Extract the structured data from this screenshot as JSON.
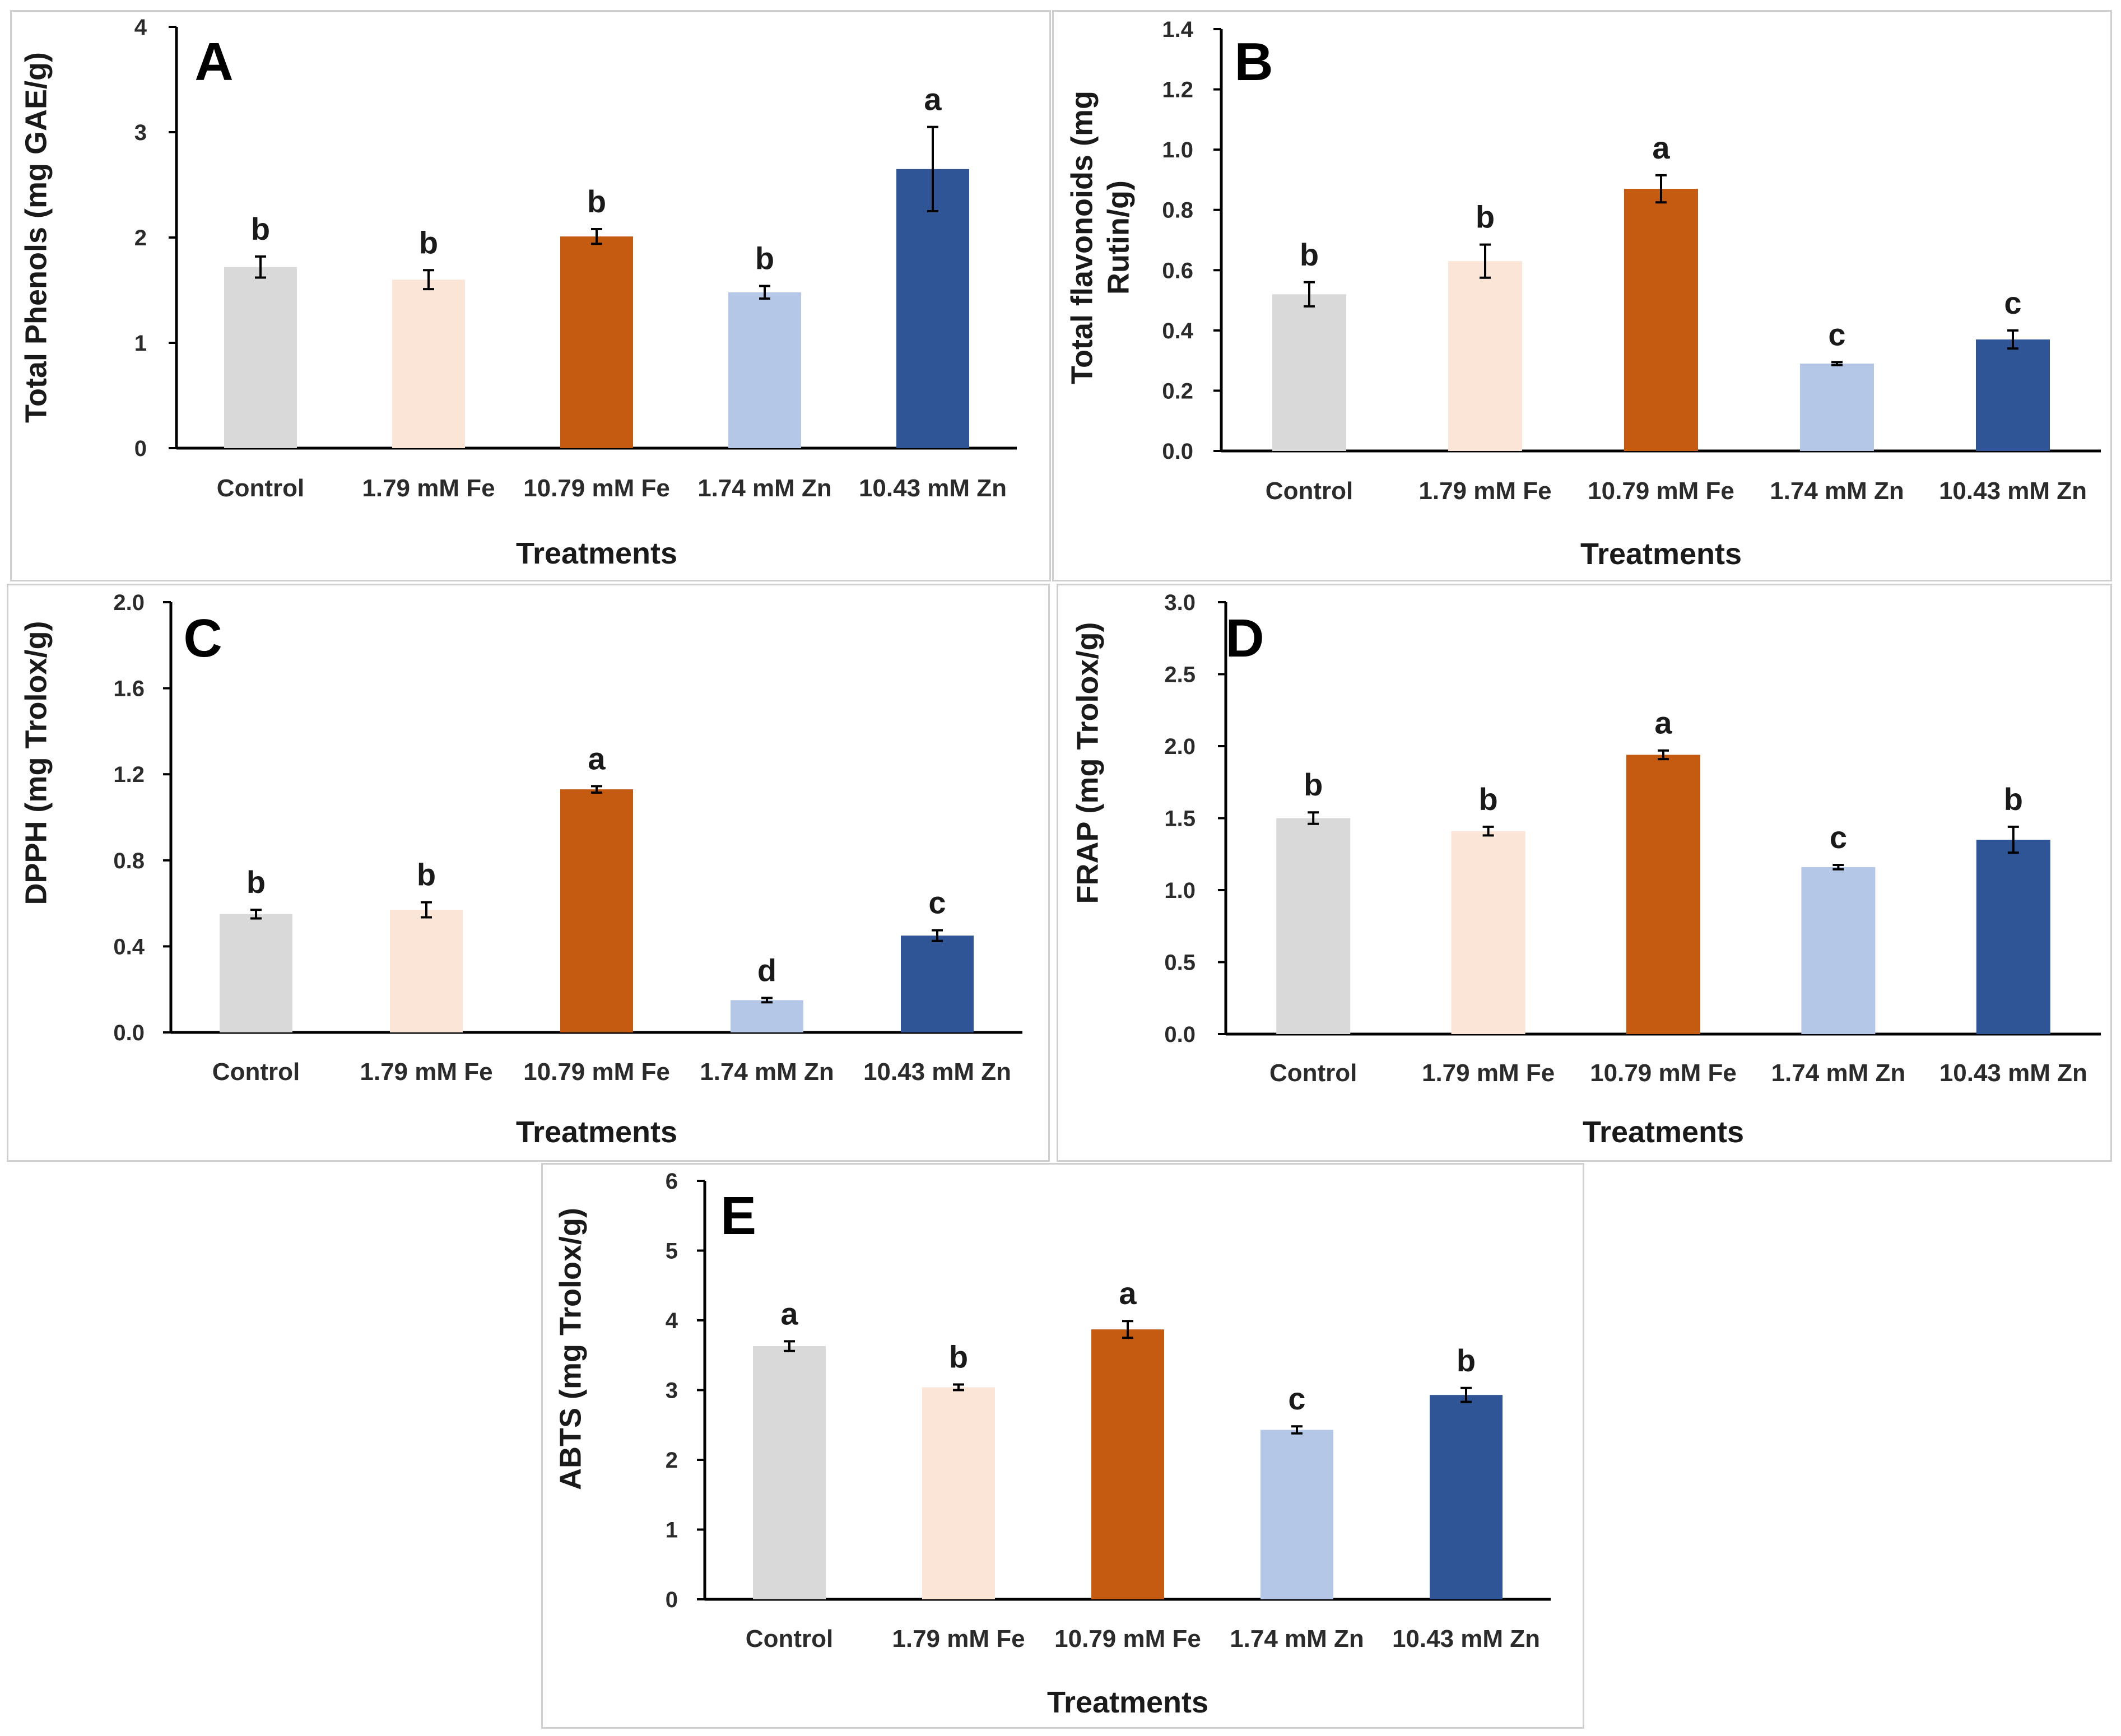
{
  "colors": {
    "Control": "#d9d9d9",
    "1.79 mM Fe": "#fbe5d6",
    "10.79 mM Fe": "#c55a11",
    "1.74 mM Zn": "#b4c7e7",
    "10.43 mM Zn": "#2f5597"
  },
  "chart_data": [
    {
      "type": "bar",
      "panel": "A",
      "categories": [
        "Control",
        "1.79 mM Fe",
        "10.79 mM Fe",
        "1.74 mM Zn",
        "10.43 mM Zn"
      ],
      "values": [
        1.72,
        1.6,
        2.01,
        1.48,
        2.65
      ],
      "errors": [
        0.1,
        0.09,
        0.07,
        0.06,
        0.4
      ],
      "significance": [
        "b",
        "b",
        "b",
        "b",
        "a"
      ],
      "ylabel": "Total Phenols (mg GAE/g)",
      "xlabel": "Treatments",
      "ylim": [
        0,
        4
      ],
      "yticks": [
        "0",
        "1",
        "2",
        "3",
        "4"
      ]
    },
    {
      "type": "bar",
      "panel": "B",
      "categories": [
        "Control",
        "1.79 mM Fe",
        "10.79 mM Fe",
        "1.74 mM Zn",
        "10.43 mM Zn"
      ],
      "values": [
        0.52,
        0.63,
        0.87,
        0.29,
        0.37
      ],
      "errors": [
        0.04,
        0.055,
        0.045,
        0.005,
        0.03
      ],
      "significance": [
        "b",
        "b",
        "a",
        "c",
        "c"
      ],
      "ylabel": [
        "Total flavonoids (mg",
        "Rutin/g)"
      ],
      "xlabel": "Treatments",
      "ylim": [
        0,
        1.4
      ],
      "yticks": [
        "0.0",
        "0.2",
        "0.4",
        "0.6",
        "0.8",
        "1.0",
        "1.2",
        "1.4"
      ]
    },
    {
      "type": "bar",
      "panel": "C",
      "categories": [
        "Control",
        "1.79 mM Fe",
        "10.79 mM Fe",
        "1.74 mM Zn",
        "10.43 mM Zn"
      ],
      "values": [
        0.55,
        0.57,
        1.13,
        0.15,
        0.45
      ],
      "errors": [
        0.02,
        0.035,
        0.015,
        0.01,
        0.025
      ],
      "significance": [
        "b",
        "b",
        "a",
        "d",
        "c"
      ],
      "ylabel": "DPPH (mg Trolox/g)",
      "xlabel": "Treatments",
      "ylim": [
        0,
        2.0
      ],
      "yticks": [
        "0.0",
        "0.4",
        "0.8",
        "1.2",
        "1.6",
        "2.0"
      ]
    },
    {
      "type": "bar",
      "panel": "D",
      "categories": [
        "Control",
        "1.79 mM Fe",
        "10.79 mM Fe",
        "1.74 mM Zn",
        "10.43 mM Zn"
      ],
      "values": [
        1.5,
        1.41,
        1.94,
        1.16,
        1.35
      ],
      "errors": [
        0.04,
        0.03,
        0.03,
        0.015,
        0.09
      ],
      "significance": [
        "b",
        "b",
        "a",
        "c",
        "b"
      ],
      "ylabel": "FRAP (mg Trolox/g)",
      "xlabel": "Treatments",
      "ylim": [
        0,
        3.0
      ],
      "yticks": [
        "0.0",
        "0.5",
        "1.0",
        "1.5",
        "2.0",
        "2.5",
        "3.0"
      ]
    },
    {
      "type": "bar",
      "panel": "E",
      "categories": [
        "Control",
        "1.79 mM Fe",
        "10.79 mM Fe",
        "1.74 mM Zn",
        "10.43 mM Zn"
      ],
      "values": [
        3.63,
        3.04,
        3.87,
        2.43,
        2.93
      ],
      "errors": [
        0.07,
        0.04,
        0.12,
        0.05,
        0.1
      ],
      "significance": [
        "a",
        "b",
        "a",
        "c",
        "b"
      ],
      "ylabel": "ABTS (mg Trolox/g)",
      "xlabel": "Treatments",
      "ylim": [
        0,
        6
      ],
      "yticks": [
        "0",
        "1",
        "2",
        "3",
        "4",
        "5",
        "6"
      ]
    }
  ]
}
